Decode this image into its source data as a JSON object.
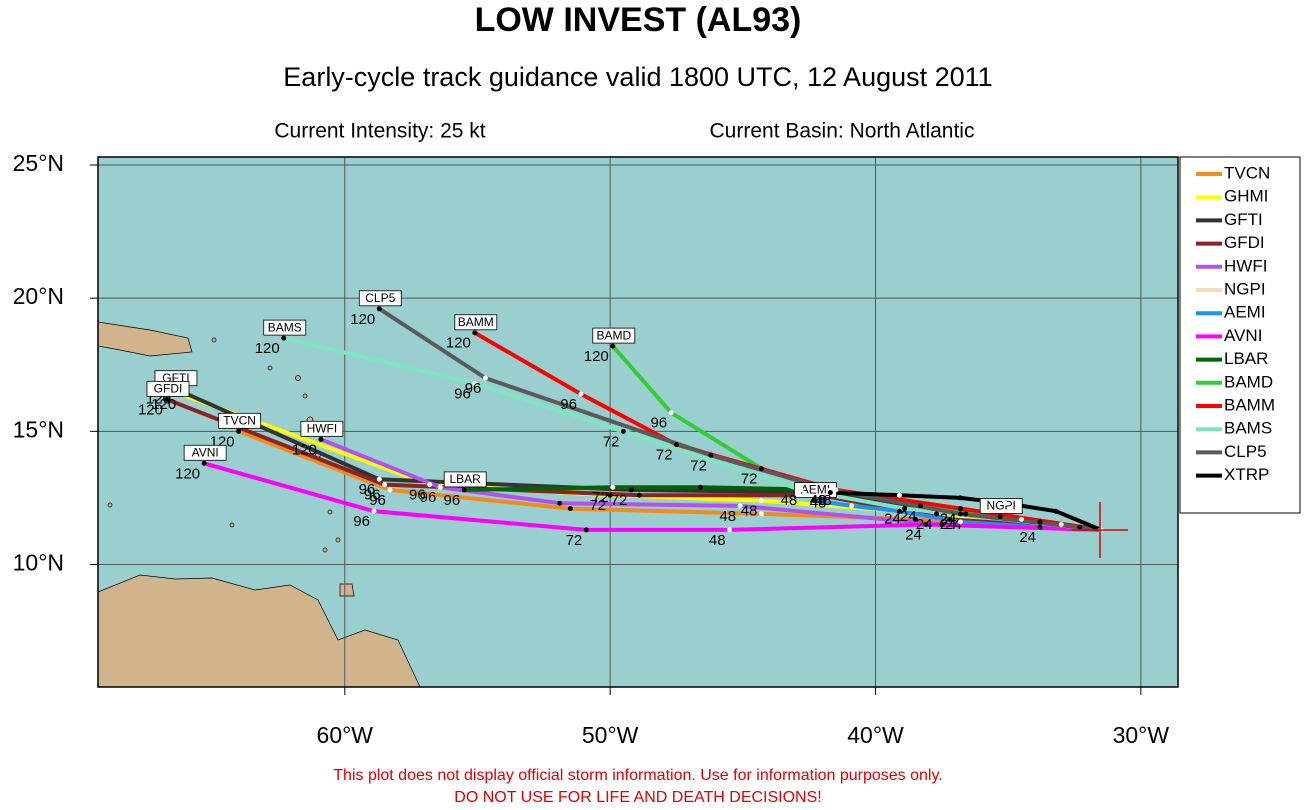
{
  "chart_data": {
    "type": "track-map",
    "title": "LOW INVEST (AL93)",
    "subtitle": "Early-cycle track guidance valid 1800 UTC, 12 August 2011",
    "intensity": "Current Intensity: 25 kt",
    "basin": "Current Basin: North Atlantic",
    "footer": [
      "This plot does not display official storm information. Use for information purposes only.",
      "DO NOT USE FOR LIFE AND DEATH DECISIONS!"
    ],
    "xlim": [
      -69.3,
      -28.6
    ],
    "ylim": [
      5.4,
      25.3
    ],
    "xticks": [
      {
        "value": -60,
        "label": "60°W"
      },
      {
        "value": -50,
        "label": "50°W"
      },
      {
        "value": -40,
        "label": "40°W"
      },
      {
        "value": -30,
        "label": "30°W"
      }
    ],
    "yticks": [
      {
        "value": 10,
        "label": "10°N"
      },
      {
        "value": 15,
        "label": "15°N"
      },
      {
        "value": 20,
        "label": "20°N"
      },
      {
        "value": 25,
        "label": "25°N"
      }
    ],
    "grid": true,
    "series": [
      {
        "name": "TVCN",
        "color": "#f08c1c",
        "boxed": true,
        "lon": [
          -31.5,
          -38.5,
          -44.3,
          -51.5,
          -58.3,
          -64.0
        ],
        "lat": [
          11.3,
          11.7,
          11.9,
          12.1,
          12.8,
          15.0
        ],
        "point_labels": [
          null,
          null,
          null,
          null,
          "96",
          "120"
        ]
      },
      {
        "name": "GHMI",
        "color": "#ffff00",
        "boxed": false,
        "lon": [
          -31.5,
          -37.7,
          -44.3,
          -50.0,
          -56.8,
          -66.2
        ],
        "lat": [
          11.3,
          11.9,
          12.4,
          12.6,
          13.0,
          16.4
        ],
        "point_labels": [
          null,
          "24",
          "48",
          "72",
          "96",
          "120"
        ]
      },
      {
        "name": "GFTI",
        "color": "#333333",
        "boxed": true,
        "lon": [
          -31.5,
          -36.6,
          -41.7,
          -49.2,
          -58.7,
          -66.4
        ],
        "lat": [
          11.3,
          11.9,
          12.7,
          12.8,
          13.2,
          16.6
        ],
        "point_labels": [
          null,
          "24",
          "48",
          "72",
          "96",
          "120"
        ]
      },
      {
        "name": "GFDI",
        "color": "#8b2323",
        "boxed": true,
        "lon": [
          -31.5,
          -37.2,
          -42.1,
          -48.9,
          -58.5,
          -66.7
        ],
        "lat": [
          11.3,
          11.7,
          12.6,
          12.6,
          13.0,
          16.2
        ],
        "point_labels": [
          null,
          null,
          null,
          null,
          "96",
          "120"
        ]
      },
      {
        "name": "HWFI",
        "color": "#b450f0",
        "boxed": true,
        "lon": [
          -31.5,
          -37.5,
          -45.1,
          -51.9,
          -56.4,
          -60.9
        ],
        "lat": [
          11.3,
          11.5,
          12.2,
          12.3,
          12.9,
          14.7
        ],
        "point_labels": [
          null,
          null,
          "48",
          null,
          "96",
          "120"
        ]
      },
      {
        "name": "NGPI",
        "color": "#f5deb3",
        "boxed": true,
        "lon": [
          -31.5,
          -32.3,
          -33.0,
          -33.8,
          -34.5,
          -35.3
        ],
        "lat": [
          11.3,
          11.4,
          11.5,
          11.6,
          11.7,
          11.8
        ],
        "point_labels": [
          null,
          null,
          null,
          null,
          null,
          null
        ]
      },
      {
        "name": "AEMI",
        "color": "#1e90ff",
        "boxed": true,
        "lon": [
          -31.5,
          -33.8,
          -36.8,
          -39.1,
          -40.9,
          -42.3
        ],
        "lat": [
          11.3,
          11.4,
          11.6,
          12.0,
          12.2,
          12.4
        ],
        "point_labels": [
          null,
          "24",
          null,
          null,
          null,
          null
        ]
      },
      {
        "name": "AVNI",
        "color": "#ff00ff",
        "boxed": true,
        "lon": [
          -31.5,
          -38.1,
          -45.5,
          -50.9,
          -58.9,
          -65.3
        ],
        "lat": [
          11.3,
          11.5,
          11.3,
          11.3,
          12.0,
          13.8
        ],
        "point_labels": [
          null,
          "24",
          "48",
          "72",
          "96",
          "120"
        ]
      },
      {
        "name": "LBAR",
        "color": "#006400",
        "boxed": true,
        "lon": [
          -31.5,
          -36.8,
          -41.7,
          -46.6,
          -49.9,
          -55.5
        ],
        "lat": [
          11.3,
          12.1,
          12.8,
          12.9,
          12.9,
          12.8
        ],
        "point_labels": [
          null,
          "24",
          "48",
          null,
          "72",
          "96"
        ]
      },
      {
        "name": "BAMD",
        "color": "#32cd32",
        "boxed": true,
        "lon": [
          -31.5,
          -38.3,
          -41.7,
          -44.3,
          -47.7,
          -49.9
        ],
        "lat": [
          11.3,
          12.2,
          12.8,
          13.6,
          15.7,
          18.2
        ],
        "point_labels": [
          null,
          "24",
          "48",
          "72",
          "96",
          "120"
        ]
      },
      {
        "name": "BAMM",
        "color": "#ff0000",
        "boxed": true,
        "lon": [
          -31.5,
          -36.8,
          -41.5,
          -47.5,
          -51.1,
          -55.1
        ],
        "lat": [
          11.3,
          12.1,
          12.8,
          14.5,
          16.4,
          18.7
        ],
        "point_labels": [
          null,
          "24",
          "48",
          "72",
          "96",
          "120"
        ]
      },
      {
        "name": "BAMS",
        "color": "#7fe5c0",
        "boxed": true,
        "lon": [
          -31.5,
          -38.9,
          -42.8,
          -49.5,
          -55.1,
          -62.3
        ],
        "lat": [
          11.3,
          12.1,
          12.8,
          15.0,
          16.8,
          18.5
        ],
        "point_labels": [
          null,
          "24",
          "48",
          "72",
          "96",
          "120"
        ]
      },
      {
        "name": "CLP5",
        "color": "#5a5a5a",
        "boxed": true,
        "lon": [
          -31.5,
          -36.8,
          -41.7,
          -46.2,
          -54.7,
          -58.7
        ],
        "lat": [
          11.3,
          11.9,
          12.8,
          14.1,
          17.0,
          19.6
        ],
        "point_labels": [
          null,
          "24",
          "48",
          "72",
          "96",
          "120"
        ]
      },
      {
        "name": "XTRP",
        "color": "#000000",
        "boxed": false,
        "lon": [
          -31.5,
          -33.2,
          -35.1,
          -36.8,
          -39.1,
          -41.7
        ],
        "lat": [
          11.3,
          12.0,
          12.3,
          12.5,
          12.6,
          12.7
        ],
        "point_labels": [
          null,
          null,
          null,
          null,
          null,
          null
        ]
      }
    ]
  }
}
